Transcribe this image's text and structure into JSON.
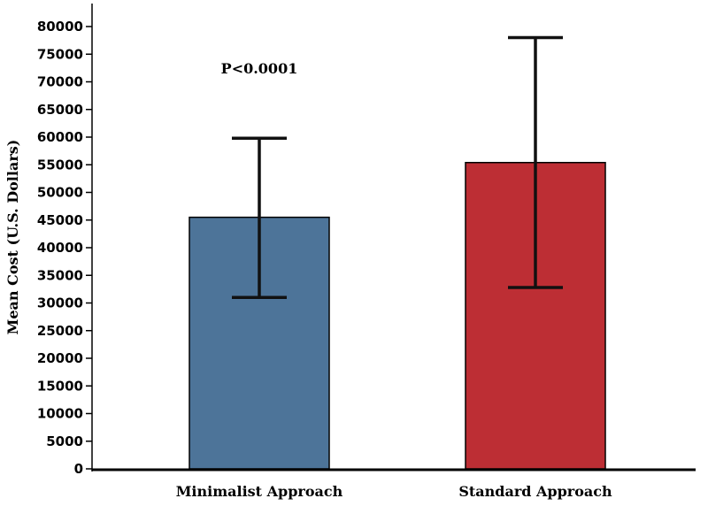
{
  "chart_data": {
    "type": "bar",
    "title": "",
    "xlabel": "",
    "ylabel": "Mean Cost (U.S. Dollars)",
    "ylim": [
      0,
      80000
    ],
    "y_ticks": [
      0,
      5000,
      10000,
      15000,
      20000,
      25000,
      30000,
      35000,
      40000,
      45000,
      50000,
      55000,
      60000,
      65000,
      70000,
      75000,
      80000
    ],
    "categories": [
      "Minimalist Approach",
      "Standard Approach"
    ],
    "values": [
      45500,
      55400
    ],
    "error_low": [
      31000,
      32800
    ],
    "error_high": [
      59800,
      78000
    ],
    "colors": [
      "#4d7499",
      "#bd2e34"
    ],
    "grid": false,
    "annotations": [
      {
        "text": "P<0.0001",
        "x": "Minimalist Approach",
        "y": 72500
      }
    ]
  }
}
